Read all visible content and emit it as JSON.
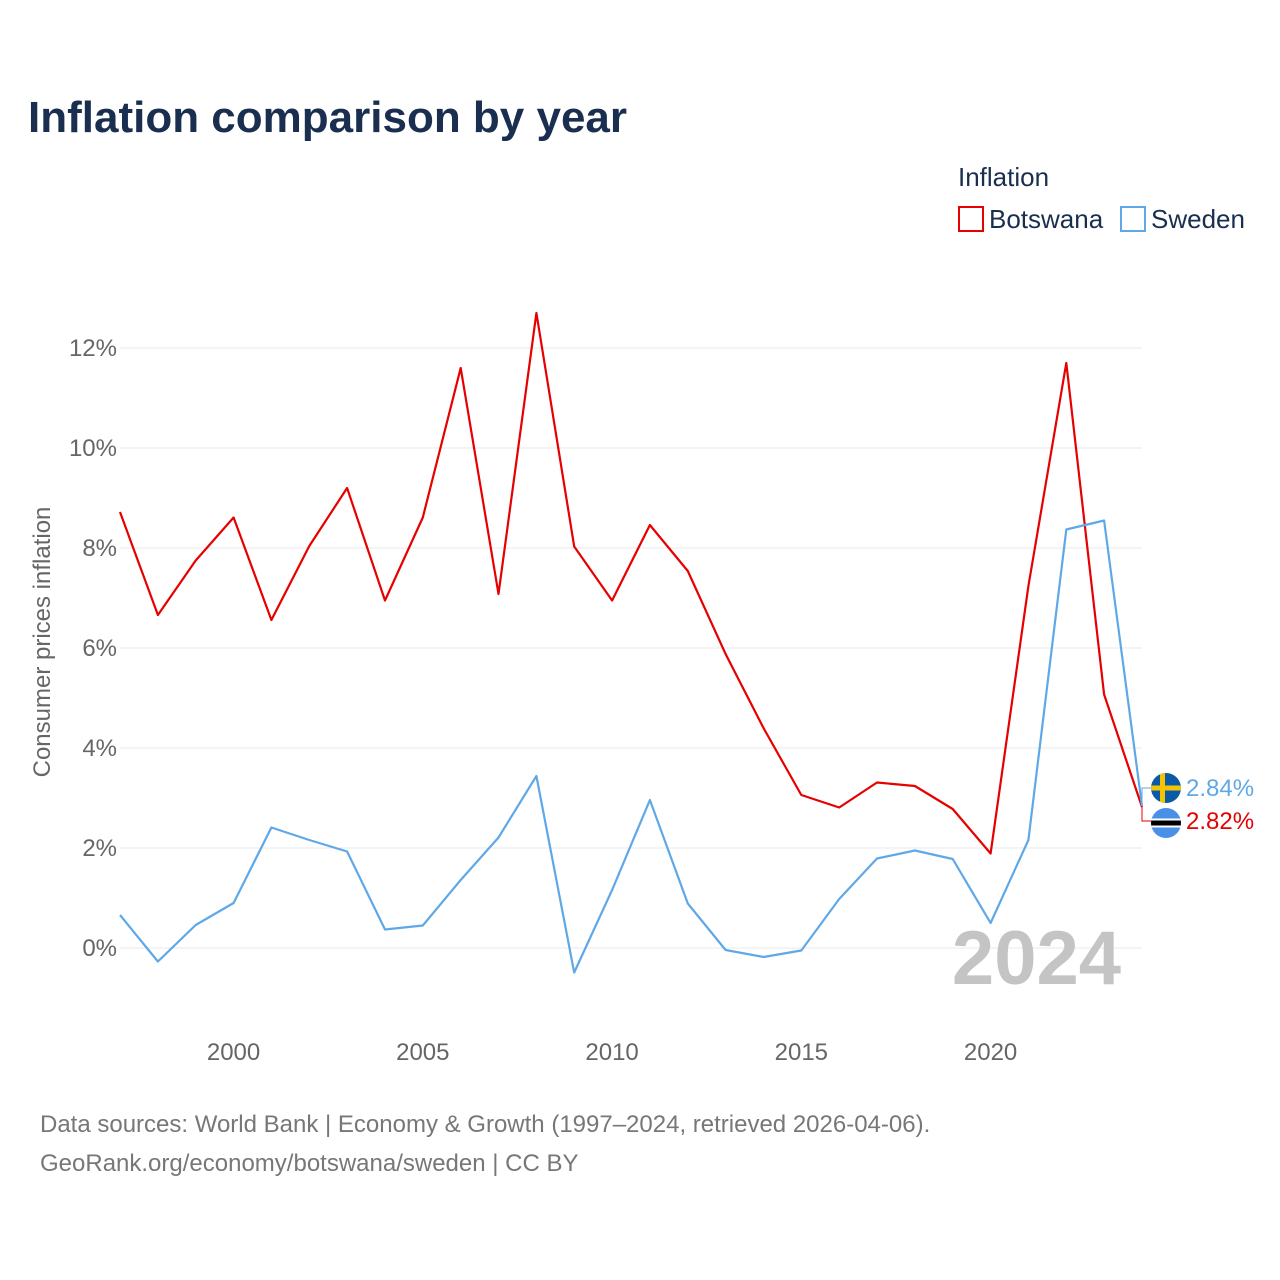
{
  "title": "Inflation comparison by year",
  "legend": {
    "title": "Inflation",
    "items": [
      {
        "label": "Botswana",
        "color": "#e60000"
      },
      {
        "label": "Sweden",
        "color": "#5fa8e8"
      }
    ]
  },
  "year_watermark": "2024",
  "source_line1": "Data sources: World Bank | Economy & Growth (1997–2024, retrieved 2026-04-06).",
  "source_line2": "GeoRank.org/economy/botswana/sweden | CC BY",
  "chart_data": {
    "type": "line",
    "title": "Inflation comparison by year",
    "xlabel": "",
    "ylabel": "Consumer prices inflation",
    "x": [
      1997,
      1998,
      1999,
      2000,
      2001,
      2002,
      2003,
      2004,
      2005,
      2006,
      2007,
      2008,
      2009,
      2010,
      2011,
      2012,
      2013,
      2014,
      2015,
      2016,
      2017,
      2018,
      2019,
      2020,
      2021,
      2022,
      2023,
      2024
    ],
    "xlim": [
      1997,
      2024
    ],
    "ylim": [
      -1,
      12.7
    ],
    "x_ticks": [
      2000,
      2005,
      2010,
      2015,
      2020
    ],
    "y_ticks": [
      0,
      2,
      4,
      6,
      8,
      10,
      12
    ],
    "y_tick_labels": [
      "0%",
      "2%",
      "4%",
      "6%",
      "8%",
      "10%",
      "12%"
    ],
    "x_tick_labels": [
      "2000",
      "2005",
      "2010",
      "2015",
      "2020"
    ],
    "grid": true,
    "legend_position": "top-right",
    "series": [
      {
        "name": "Botswana",
        "color": "#e60000",
        "end_label": "2.82%",
        "values": [
          8.72,
          6.66,
          7.75,
          8.61,
          6.56,
          8.04,
          9.2,
          6.95,
          8.61,
          11.6,
          7.08,
          12.7,
          8.03,
          6.95,
          8.46,
          7.54,
          5.88,
          4.4,
          3.06,
          2.81,
          3.31,
          3.24,
          2.78,
          1.89,
          7.24,
          11.7,
          5.07,
          2.82
        ]
      },
      {
        "name": "Sweden",
        "color": "#5fa8e8",
        "end_label": "2.84%",
        "values": [
          0.66,
          -0.27,
          0.46,
          0.9,
          2.41,
          2.16,
          1.93,
          0.37,
          0.45,
          1.36,
          2.21,
          3.44,
          -0.49,
          1.16,
          2.96,
          0.89,
          -0.04,
          -0.18,
          -0.05,
          0.98,
          1.79,
          1.95,
          1.78,
          0.5,
          2.16,
          8.37,
          8.55,
          2.84
        ]
      }
    ]
  }
}
